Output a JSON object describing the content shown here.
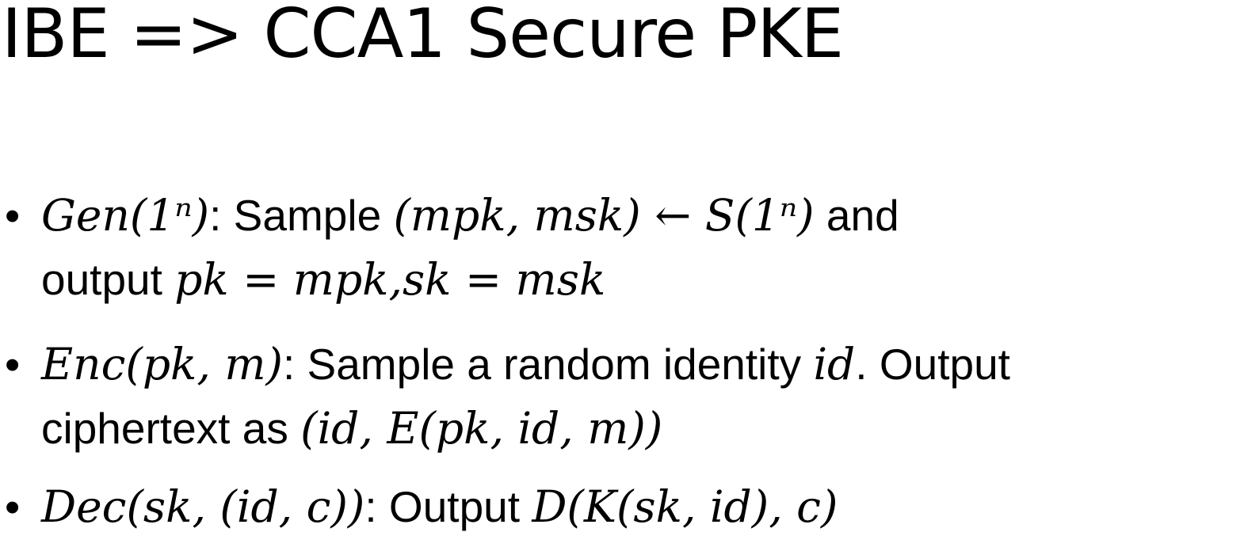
{
  "slide": {
    "title": "IBE => CCA1 Secure PKE"
  },
  "bullets": [
    {
      "symbol": "•",
      "lines": [
        {
          "parts": [
            {
              "text": "Gen(1ⁿ)",
              "math": true
            },
            {
              "text": ": Sample ",
              "math": false
            },
            {
              "text": "(mpk, msk) ←  S(1ⁿ)",
              "math": true
            },
            {
              "text": " and",
              "math": false
            }
          ]
        },
        {
          "parts": [
            {
              "text": "output ",
              "math": false
            },
            {
              "text": "pk  =  mpk,sk  =  msk",
              "math": true
            }
          ]
        }
      ]
    },
    {
      "symbol": "•",
      "lines": [
        {
          "parts": [
            {
              "text": "Enc(pk, m)",
              "math": true
            },
            {
              "text": ": Sample a random identity ",
              "math": false
            },
            {
              "text": "id",
              "math": true
            },
            {
              "text": ". Output",
              "math": false
            }
          ]
        },
        {
          "parts": [
            {
              "text": "ciphertext as ",
              "math": false
            },
            {
              "text": "(id, E(pk, id, m))",
              "math": true
            }
          ]
        }
      ]
    },
    {
      "symbol": "•",
      "lines": [
        {
          "parts": [
            {
              "text": "Dec(sk, (id, c))",
              "math": true
            },
            {
              "text": ": Output ",
              "math": false
            },
            {
              "text": "D(K(sk, id), c)",
              "math": true
            }
          ]
        }
      ]
    }
  ]
}
